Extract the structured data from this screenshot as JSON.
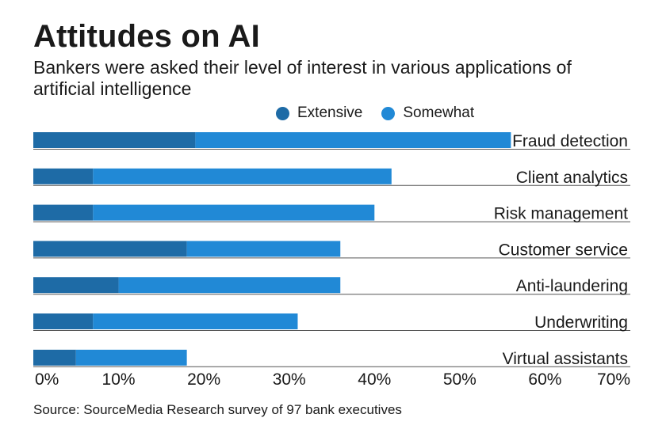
{
  "title": "Attitudes on AI",
  "subtitle": "Bankers were asked their level of interest in various applications of artificial intelligence",
  "source": "Source: SourceMedia Research survey of 97 bank executives",
  "colors": {
    "extensive": "#1e6ba6",
    "somewhat": "#2189d6",
    "axis": "#555555"
  },
  "chart_data": {
    "type": "bar",
    "orientation": "horizontal",
    "stacked": true,
    "categories": [
      "Fraud detection",
      "Client analytics",
      "Risk management",
      "Customer service",
      "Anti-laundering",
      "Underwriting",
      "Virtual assistants"
    ],
    "series": [
      {
        "name": "Extensive",
        "values": [
          19,
          7,
          7,
          18,
          10,
          7,
          5
        ]
      },
      {
        "name": "Somewhat",
        "values": [
          37,
          35,
          33,
          18,
          26,
          24,
          13
        ]
      }
    ],
    "x_ticks": [
      "0%",
      "10%",
      "20%",
      "30%",
      "40%",
      "50%",
      "60%",
      "70%"
    ],
    "xlim": [
      0,
      70
    ],
    "legend_position": "top",
    "grid": false
  }
}
